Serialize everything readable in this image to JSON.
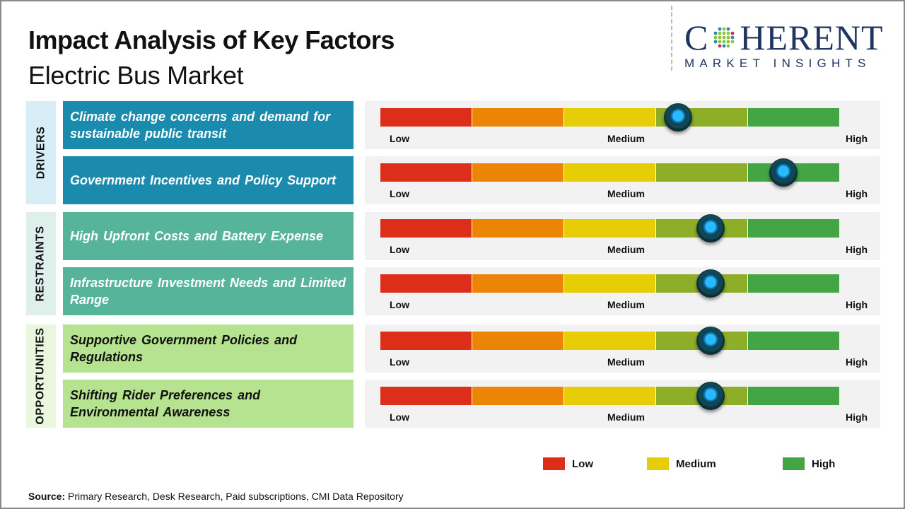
{
  "header": {
    "title": "Impact Analysis of Key Factors",
    "subtitle": "Electric Bus Market"
  },
  "logo": {
    "main_left": "C",
    "main_right": "HERENT",
    "sub": "MARKET INSIGHTS"
  },
  "colors": {
    "drivers": "#1a8aad",
    "restraints": "#55b49a",
    "opportunities": "#b6e38f",
    "drivers_tab": "#d7eef7",
    "restraints_tab": "#dff0ec",
    "opportunities_tab": "#eaf7df",
    "segments": [
      "#dd2e1a",
      "#ec8405",
      "#e6cd06",
      "#8dae26",
      "#44a544"
    ]
  },
  "chart_data": {
    "type": "gauge",
    "title": "Impact Analysis of Key Factors",
    "subtitle": "Electric Bus Market",
    "scale": {
      "min": 0,
      "max": 1,
      "labels": [
        "Low",
        "Medium",
        "High"
      ]
    },
    "groups": [
      {
        "name": "DRIVERS",
        "factors": [
          {
            "label": "Climate change concerns and demand for sustainable public transit",
            "impact": 0.65
          },
          {
            "label": "Government Incentives and Policy Support",
            "impact": 0.88
          }
        ]
      },
      {
        "name": "RESTRAINTS",
        "factors": [
          {
            "label": "High Upfront Costs and Battery Expense",
            "impact": 0.72
          },
          {
            "label": "Infrastructure Investment Needs and Limited Range",
            "impact": 0.72
          }
        ]
      },
      {
        "name": "OPPORTUNITIES",
        "factors": [
          {
            "label": "Supportive Government Policies and Regulations",
            "impact": 0.72
          },
          {
            "label": "Shifting Rider Preferences and Environmental Awareness",
            "impact": 0.72
          }
        ]
      }
    ],
    "legend": [
      {
        "label": "Low",
        "color": "#dd2e1a"
      },
      {
        "label": "Medium",
        "color": "#e6cd06"
      },
      {
        "label": "High",
        "color": "#44a544"
      }
    ]
  },
  "source": {
    "label": "Source:",
    "text": " Primary Research, Desk Research, Paid subscriptions, CMI Data Repository"
  }
}
